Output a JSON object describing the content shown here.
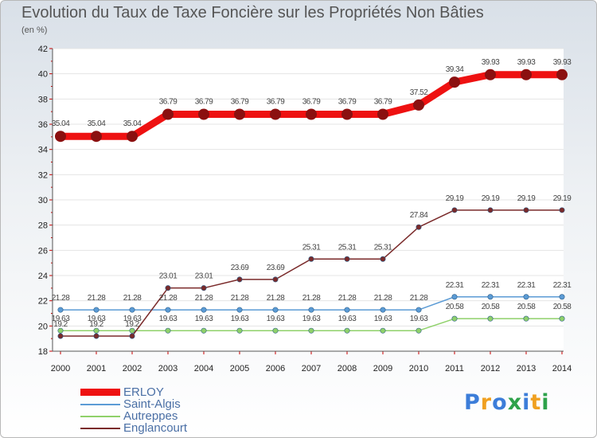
{
  "chart_data": {
    "type": "line",
    "title": "Evolution du Taux de Taxe Foncière sur les Propriétés Non Bâties",
    "subtitle": "(en %)",
    "xlabel": "",
    "ylabel": "",
    "x": [
      "2000",
      "2001",
      "2002",
      "2003",
      "2004",
      "2005",
      "2006",
      "2007",
      "2008",
      "2009",
      "2010",
      "2011",
      "2012",
      "2013",
      "2014"
    ],
    "ylim": [
      18,
      42
    ],
    "yticks": [
      18,
      20,
      22,
      24,
      26,
      28,
      30,
      32,
      34,
      36,
      38,
      40,
      42
    ],
    "legend_position": "bottom-left",
    "series": [
      {
        "name": "ERLOY",
        "color": "#ee1111",
        "values": [
          35.04,
          35.04,
          35.04,
          36.79,
          36.79,
          36.79,
          36.79,
          36.79,
          36.79,
          36.79,
          37.52,
          39.34,
          39.93,
          39.93,
          39.93
        ],
        "labels": [
          "35.04",
          "35.04",
          "35.04",
          "36.79",
          "36.79",
          "36.79",
          "36.79",
          "36.79",
          "36.79",
          "36.79",
          "37.52",
          "39.34",
          "39.93",
          "39.93",
          "39.93"
        ]
      },
      {
        "name": "Saint-Algis",
        "color": "#5b9bd5",
        "values": [
          21.28,
          21.28,
          21.28,
          21.28,
          21.28,
          21.28,
          21.28,
          21.28,
          21.28,
          21.28,
          21.28,
          22.31,
          22.31,
          22.31,
          22.31
        ],
        "labels": [
          "21.28",
          "21.28",
          "21.28",
          "21.28",
          "21.28",
          "21.28",
          "21.28",
          "21.28",
          "21.28",
          "21.28",
          "21.28",
          "22.31",
          "22.31",
          "22.31",
          "22.31"
        ]
      },
      {
        "name": "Autreppes",
        "color": "#8fd16a",
        "values": [
          19.63,
          19.63,
          19.63,
          19.63,
          19.63,
          19.63,
          19.63,
          19.63,
          19.63,
          19.63,
          19.63,
          20.58,
          20.58,
          20.58,
          20.58
        ],
        "labels": [
          "19.63",
          "19.63",
          "19.63",
          "19.63",
          "19.63",
          "19.63",
          "19.63",
          "19.63",
          "19.63",
          "19.63",
          "19.63",
          "20.58",
          "20.58",
          "20.58",
          "20.58"
        ]
      },
      {
        "name": "Englancourt",
        "color": "#7a2a2a",
        "values": [
          19.2,
          19.2,
          19.2,
          23.01,
          23.01,
          23.69,
          23.69,
          25.31,
          25.31,
          25.31,
          27.84,
          29.19,
          29.19,
          29.19,
          29.19
        ],
        "labels": [
          "19.2",
          "19.2",
          "19.2",
          "23.01",
          "23.01",
          "23.69",
          "23.69",
          "25.31",
          "25.31",
          "25.31",
          "27.84",
          "29.19",
          "29.19",
          "29.19",
          "29.19"
        ]
      }
    ]
  },
  "logo": {
    "letters": [
      "P",
      "r",
      "o",
      "x",
      "i",
      "t",
      "i"
    ],
    "colors": [
      "#3c7dd9",
      "#f0a020",
      "#3c7dd9",
      "#2ea24a",
      "#3c7dd9",
      "#f0a020",
      "#2ea24a"
    ]
  }
}
